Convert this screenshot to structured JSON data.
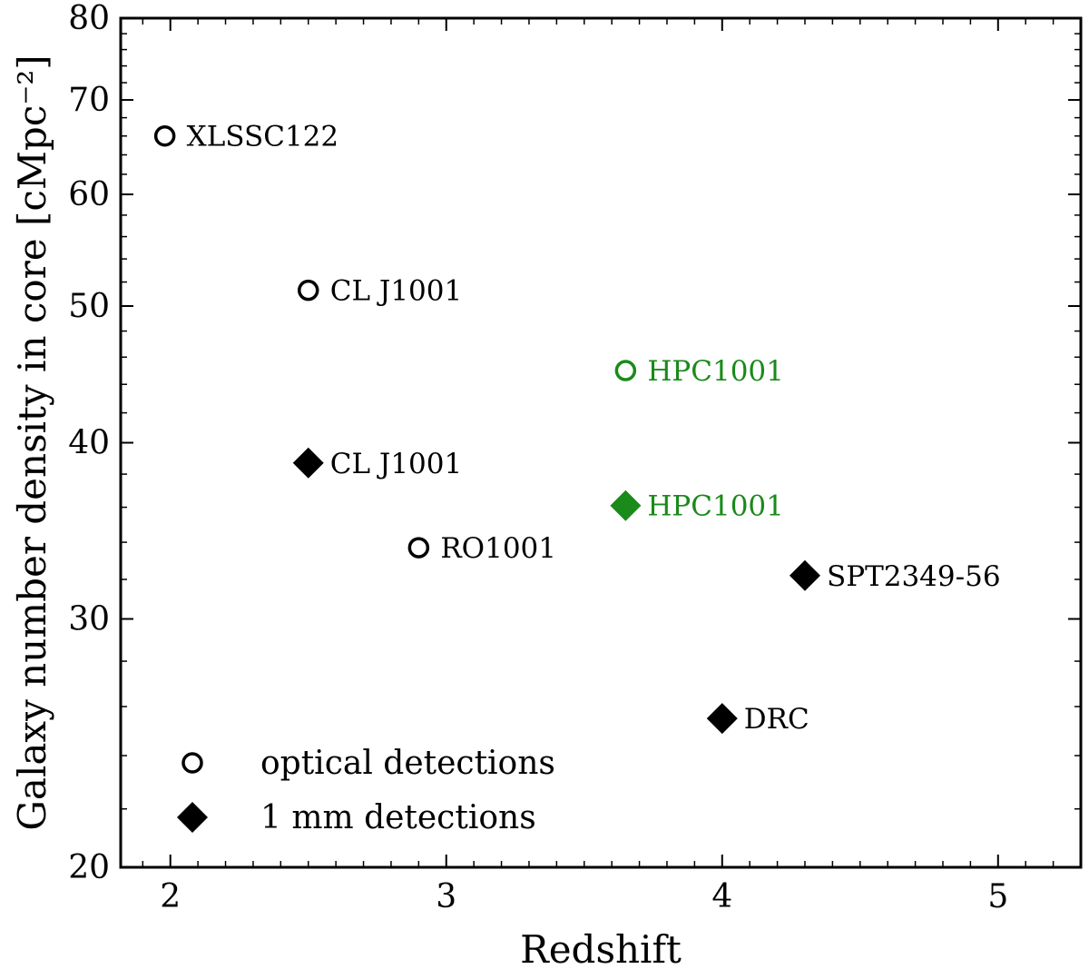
{
  "chart_data": {
    "type": "scatter",
    "xlabel": "Redshift",
    "ylabel": "Galaxy number density in core [cMpc⁻²]",
    "xlim": [
      1.82,
      5.3
    ],
    "ylim": [
      20,
      80
    ],
    "yscale": "log",
    "x_ticks": [
      2,
      3,
      4,
      5
    ],
    "x_tick_labels": [
      "2",
      "3",
      "4",
      "5"
    ],
    "y_ticks": [
      20,
      30,
      40,
      50,
      60,
      70,
      80
    ],
    "y_tick_labels": [
      "20",
      "30",
      "40",
      "50",
      "60",
      "70",
      "80"
    ],
    "grid": false,
    "legend_position": "bottom-left",
    "colors": {
      "default": "#000000",
      "highlight": "#1a8a1a"
    },
    "series": [
      {
        "name": "optical detections",
        "marker": "open-circle",
        "points": [
          {
            "x": 1.98,
            "y": 66,
            "label": "XLSSC122",
            "color": "#000000"
          },
          {
            "x": 2.5,
            "y": 51.3,
            "label": "CL J1001",
            "color": "#000000"
          },
          {
            "x": 3.65,
            "y": 45,
            "label": "HPC1001",
            "color": "#1a8a1a"
          },
          {
            "x": 2.9,
            "y": 33.7,
            "label": "RO1001",
            "color": "#000000"
          }
        ]
      },
      {
        "name": "1 mm detections",
        "marker": "filled-diamond",
        "points": [
          {
            "x": 2.5,
            "y": 38.7,
            "label": "CL J1001",
            "color": "#000000"
          },
          {
            "x": 3.65,
            "y": 36.1,
            "label": "HPC1001",
            "color": "#1a8a1a"
          },
          {
            "x": 4.3,
            "y": 32.2,
            "label": "SPT2349-56",
            "color": "#000000"
          },
          {
            "x": 4.0,
            "y": 25.5,
            "label": "DRC",
            "color": "#000000"
          }
        ]
      }
    ]
  }
}
